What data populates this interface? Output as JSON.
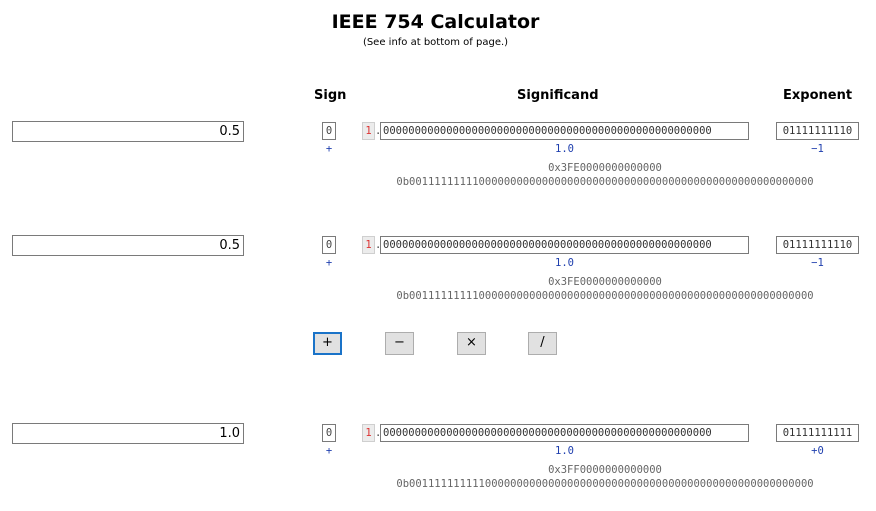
{
  "title": "IEEE 754 Calculator",
  "subtitle": "(See info at bottom of page.)",
  "headers": {
    "sign": "Sign",
    "significand": "Significand",
    "exponent": "Exponent"
  },
  "rows": [
    {
      "decimal": "0.5",
      "sign_bit": "0",
      "sign_value": "+",
      "hidden_bit": "1",
      "separator": ".",
      "significand_bits": "0000000000000000000000000000000000000000000000000000",
      "significand_value": "1.0",
      "exponent_bits": "01111111110",
      "exponent_value": "−1",
      "hex": "0x3FE0000000000000",
      "binary": "0b0011111111100000000000000000000000000000000000000000000000000000"
    },
    {
      "decimal": "0.5",
      "sign_bit": "0",
      "sign_value": "+",
      "hidden_bit": "1",
      "separator": ".",
      "significand_bits": "0000000000000000000000000000000000000000000000000000",
      "significand_value": "1.0",
      "exponent_bits": "01111111110",
      "exponent_value": "−1",
      "hex": "0x3FE0000000000000",
      "binary": "0b0011111111100000000000000000000000000000000000000000000000000000"
    },
    {
      "decimal": "1.0",
      "sign_bit": "0",
      "sign_value": "+",
      "hidden_bit": "1",
      "separator": ".",
      "significand_bits": "0000000000000000000000000000000000000000000000000000",
      "significand_value": "1.0",
      "exponent_bits": "01111111111",
      "exponent_value": "+0",
      "hex": "0x3FF0000000000000",
      "binary": "0b0011111111110000000000000000000000000000000000000000000000000000"
    }
  ],
  "operations": {
    "add": "+",
    "subtract": "−",
    "multiply": "×",
    "divide": "/"
  },
  "colors": {
    "value_blue": "#1f3fae",
    "hidden_bit_red": "#dd3333",
    "focus_border": "#1a73c8"
  }
}
